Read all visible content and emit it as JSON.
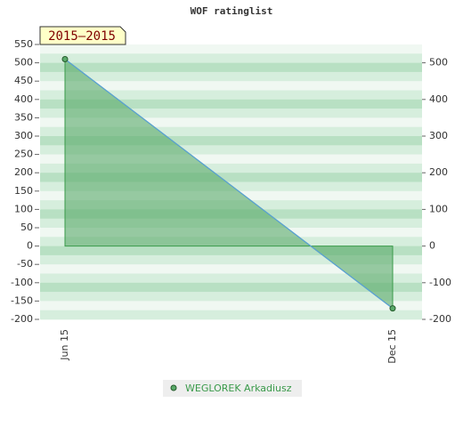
{
  "chart_data": {
    "type": "area",
    "title": "WOF ratinglist",
    "label": "2015–2015",
    "categories": [
      "Jun 15",
      "Dec 15"
    ],
    "series": [
      {
        "name": "WEGLOREK Arkadiusz",
        "color": "#5aaa6a",
        "values": [
          510,
          -170
        ]
      }
    ],
    "ylim": [
      -200,
      550
    ],
    "yticks": [
      -200,
      -150,
      -100,
      -50,
      0,
      50,
      100,
      150,
      200,
      250,
      300,
      350,
      400,
      450,
      500,
      550
    ],
    "y2lim": [
      -200,
      550
    ],
    "y2ticks": [
      -200,
      -100,
      0,
      100,
      200,
      300,
      400,
      500
    ]
  }
}
